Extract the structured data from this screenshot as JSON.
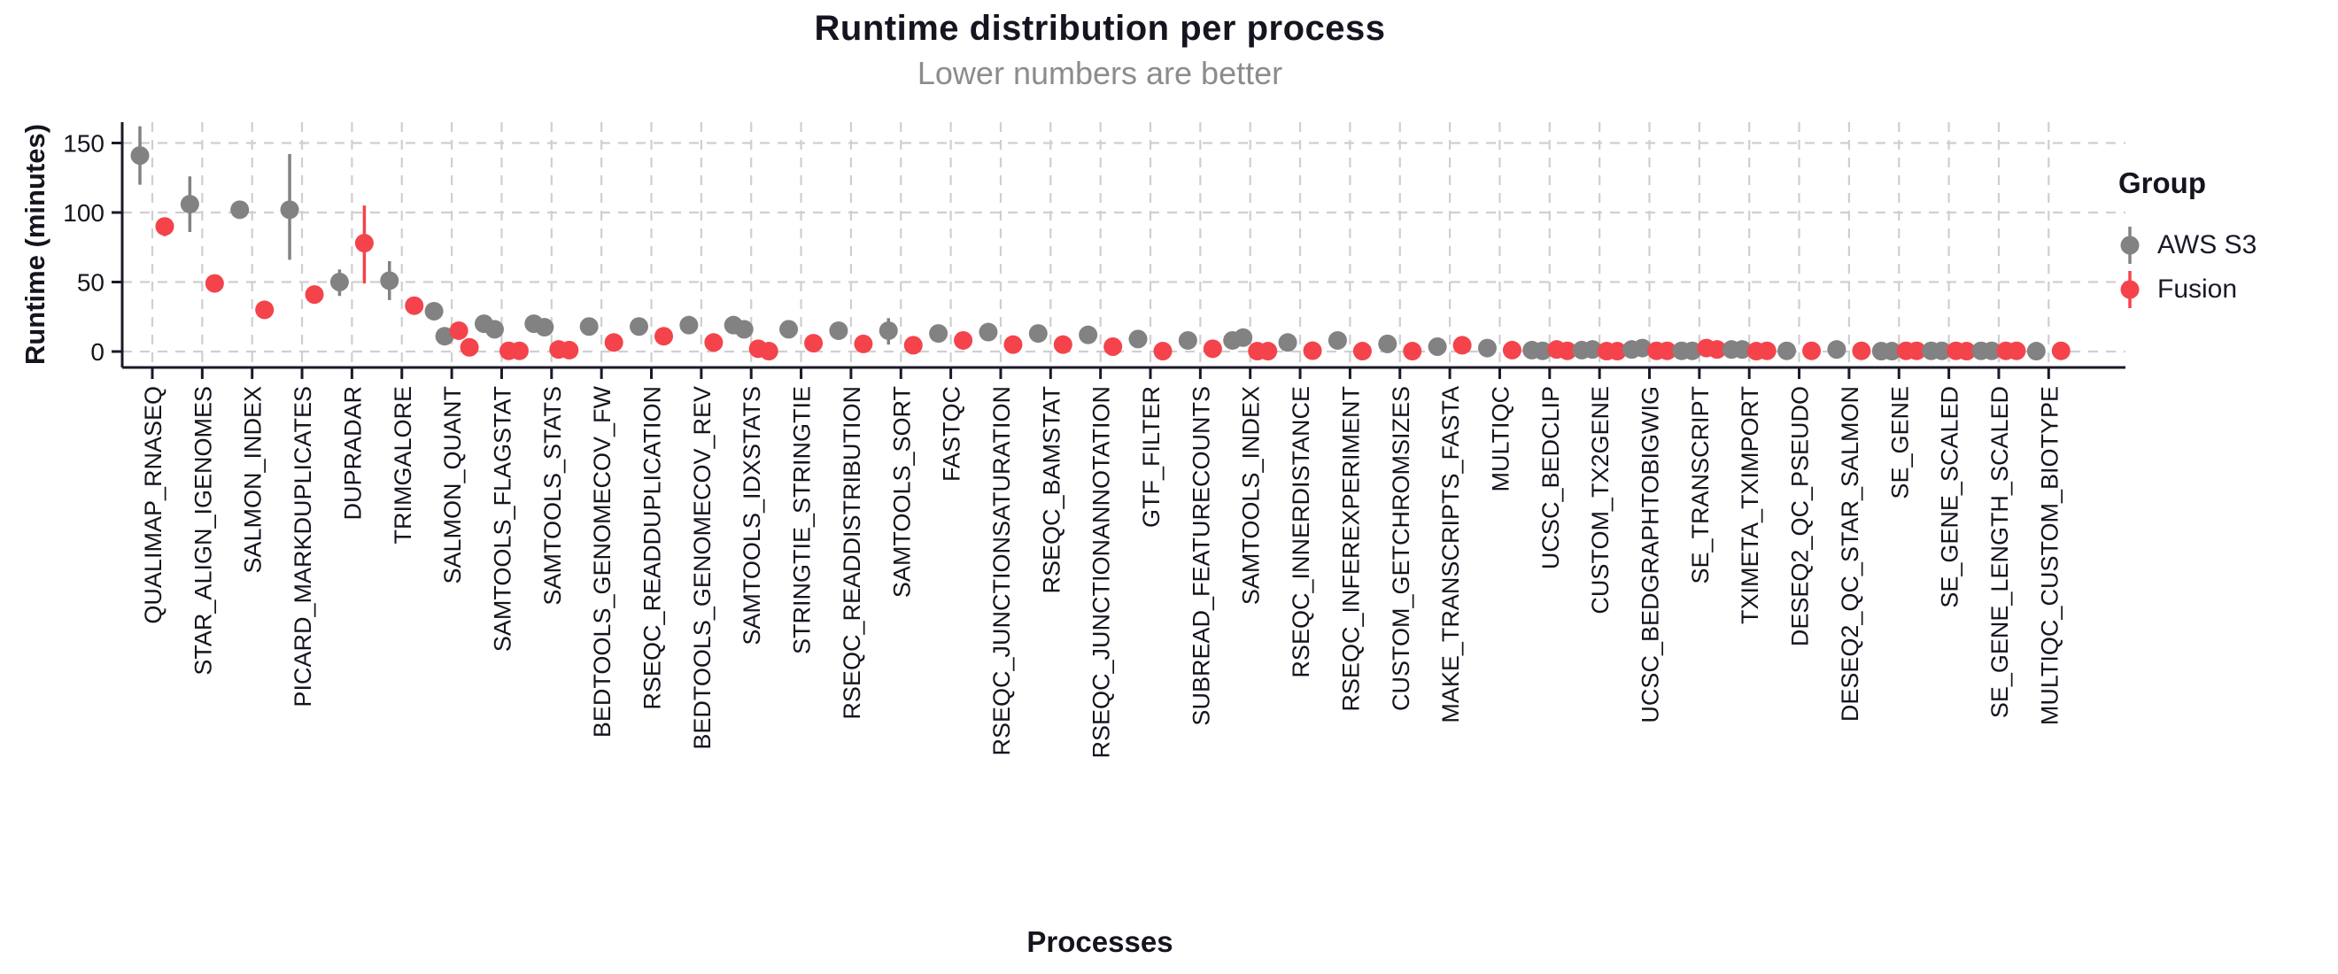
{
  "header": {
    "title": "Runtime distribution per process",
    "subtitle": "Lower numbers are better"
  },
  "axes": {
    "y_title": "Runtime (minutes)",
    "x_title": "Processes"
  },
  "legend": {
    "title": "Group",
    "items": [
      {
        "label": "AWS S3",
        "color": "#828282"
      },
      {
        "label": "Fusion",
        "color": "#F4434B"
      }
    ]
  },
  "colors": {
    "aws_s3": "#828282",
    "fusion": "#F4434B",
    "grid": "#CFCFCF",
    "axis": "#1B1928",
    "text_dark": "#16141F",
    "subtitle_gray": "#8C8C8C"
  },
  "chart_data": {
    "type": "scatter",
    "title": "Runtime distribution per process",
    "subtitle": "Lower numbers are better",
    "xlabel": "Processes",
    "ylabel": "Runtime (minutes)",
    "ylim": [
      0,
      175
    ],
    "yticks": [
      0,
      50,
      100,
      150
    ],
    "grid": true,
    "legend_position": "right",
    "legend_title": "Group",
    "series_names": [
      "AWS S3",
      "Fusion"
    ],
    "note": "Each category shows dodged points per group (values in minutes); *_range = error-bar [low, high] where visible.",
    "categories": [
      {
        "name": "QUALIMAP_RNASEQ",
        "aws_s3": [
          141
        ],
        "aws_s3_range": [
          120,
          162
        ],
        "fusion": [
          90
        ],
        "fusion_range": [
          83,
          96
        ]
      },
      {
        "name": "STAR_ALIGN_IGENOMES",
        "aws_s3": [
          106
        ],
        "aws_s3_range": [
          86,
          126
        ],
        "fusion": [
          49
        ],
        "fusion_range": null
      },
      {
        "name": "SALMON_INDEX",
        "aws_s3": [
          102
        ],
        "aws_s3_range": null,
        "fusion": [
          30
        ],
        "fusion_range": null
      },
      {
        "name": "PICARD_MARKDUPLICATES",
        "aws_s3": [
          102
        ],
        "aws_s3_range": [
          66,
          142
        ],
        "fusion": [
          41
        ],
        "fusion_range": null
      },
      {
        "name": "DUPRADAR",
        "aws_s3": [
          50
        ],
        "aws_s3_range": [
          40,
          59
        ],
        "fusion": [
          78
        ],
        "fusion_range": [
          49,
          105
        ]
      },
      {
        "name": "TRIMGALORE",
        "aws_s3": [
          51
        ],
        "aws_s3_range": [
          37,
          65
        ],
        "fusion": [
          33
        ],
        "fusion_range": null
      },
      {
        "name": "SALMON_QUANT",
        "aws_s3": [
          29,
          11
        ],
        "aws_s3_range": null,
        "fusion": [
          15,
          3
        ],
        "fusion_range": null
      },
      {
        "name": "SAMTOOLS_FLAGSTAT",
        "aws_s3": [
          20,
          16
        ],
        "aws_s3_range": null,
        "fusion": [
          0.5,
          0.5
        ],
        "fusion_range": null
      },
      {
        "name": "SAMTOOLS_STATS",
        "aws_s3": [
          20,
          17.5
        ],
        "aws_s3_range": null,
        "fusion": [
          1.5,
          1
        ],
        "fusion_range": null
      },
      {
        "name": "BEDTOOLS_GENOMECOV_FW",
        "aws_s3": [
          18
        ],
        "aws_s3_range": null,
        "fusion": [
          6.5
        ],
        "fusion_range": null
      },
      {
        "name": "RSEQC_READDUPLICATION",
        "aws_s3": [
          18
        ],
        "aws_s3_range": null,
        "fusion": [
          11
        ],
        "fusion_range": null
      },
      {
        "name": "BEDTOOLS_GENOMECOV_REV",
        "aws_s3": [
          19
        ],
        "aws_s3_range": null,
        "fusion": [
          6.5
        ],
        "fusion_range": null
      },
      {
        "name": "SAMTOOLS_IDXSTATS",
        "aws_s3": [
          19,
          16
        ],
        "aws_s3_range": null,
        "fusion": [
          2,
          0.3
        ],
        "fusion_range": null
      },
      {
        "name": "STRINGTIE_STRINGTIE",
        "aws_s3": [
          16
        ],
        "aws_s3_range": null,
        "fusion": [
          6
        ],
        "fusion_range": null
      },
      {
        "name": "RSEQC_READDISTRIBUTION",
        "aws_s3": [
          15
        ],
        "aws_s3_range": null,
        "fusion": [
          5.5
        ],
        "fusion_range": null
      },
      {
        "name": "SAMTOOLS_SORT",
        "aws_s3": [
          15
        ],
        "aws_s3_range": [
          5,
          24
        ],
        "fusion": [
          4.5
        ],
        "fusion_range": null
      },
      {
        "name": "FASTQC",
        "aws_s3": [
          13
        ],
        "aws_s3_range": null,
        "fusion": [
          8
        ],
        "fusion_range": null
      },
      {
        "name": "RSEQC_JUNCTIONSATURATION",
        "aws_s3": [
          14
        ],
        "aws_s3_range": null,
        "fusion": [
          5
        ],
        "fusion_range": null
      },
      {
        "name": "RSEQC_BAMSTAT",
        "aws_s3": [
          13
        ],
        "aws_s3_range": null,
        "fusion": [
          5
        ],
        "fusion_range": null
      },
      {
        "name": "RSEQC_JUNCTIONANNOTATION",
        "aws_s3": [
          12
        ],
        "aws_s3_range": null,
        "fusion": [
          3.5
        ],
        "fusion_range": null
      },
      {
        "name": "GTF_FILTER",
        "aws_s3": [
          9
        ],
        "aws_s3_range": null,
        "fusion": [
          0.3
        ],
        "fusion_range": null
      },
      {
        "name": "SUBREAD_FEATURECOUNTS",
        "aws_s3": [
          8
        ],
        "aws_s3_range": null,
        "fusion": [
          2
        ],
        "fusion_range": null
      },
      {
        "name": "SAMTOOLS_INDEX",
        "aws_s3": [
          8,
          10
        ],
        "aws_s3_range": null,
        "fusion": [
          0.3,
          0.3
        ],
        "fusion_range": null
      },
      {
        "name": "RSEQC_INNERDISTANCE",
        "aws_s3": [
          6.5
        ],
        "aws_s3_range": null,
        "fusion": [
          0.6
        ],
        "fusion_range": null
      },
      {
        "name": "RSEQC_INFEREXPERIMENT",
        "aws_s3": [
          8
        ],
        "aws_s3_range": null,
        "fusion": [
          0.3
        ],
        "fusion_range": null
      },
      {
        "name": "CUSTOM_GETCHROMSIZES",
        "aws_s3": [
          5.5
        ],
        "aws_s3_range": null,
        "fusion": [
          0.3
        ],
        "fusion_range": null
      },
      {
        "name": "MAKE_TRANSCRIPTS_FASTA",
        "aws_s3": [
          3.5
        ],
        "aws_s3_range": null,
        "fusion": [
          4.5
        ],
        "fusion_range": null
      },
      {
        "name": "MULTIQC",
        "aws_s3": [
          2.5
        ],
        "aws_s3_range": null,
        "fusion": [
          1
        ],
        "fusion_range": null
      },
      {
        "name": "UCSC_BEDCLIP",
        "aws_s3": [
          1,
          0.5
        ],
        "aws_s3_range": null,
        "fusion": [
          1.5,
          0.5
        ],
        "fusion_range": null
      },
      {
        "name": "CUSTOM_TX2GENE",
        "aws_s3": [
          1,
          1.5
        ],
        "aws_s3_range": null,
        "fusion": [
          0.3,
          0.3
        ],
        "fusion_range": null
      },
      {
        "name": "UCSC_BEDGRAPHTOBIGWIG",
        "aws_s3": [
          1.5,
          2.5
        ],
        "aws_s3_range": null,
        "fusion": [
          0.5,
          0.5
        ],
        "fusion_range": null
      },
      {
        "name": "SE_TRANSCRIPT",
        "aws_s3": [
          0.5,
          0.5
        ],
        "aws_s3_range": null,
        "fusion": [
          2.5,
          1.5
        ],
        "fusion_range": null
      },
      {
        "name": "TXIMETA_TXIMPORT",
        "aws_s3": [
          1.5,
          1.5
        ],
        "aws_s3_range": null,
        "fusion": [
          0.3,
          0.5
        ],
        "fusion_range": null
      },
      {
        "name": "DESEQ2_QC_PSEUDO",
        "aws_s3": [
          0.5
        ],
        "aws_s3_range": null,
        "fusion": [
          0.5
        ],
        "fusion_range": null
      },
      {
        "name": "DESEQ2_QC_STAR_SALMON",
        "aws_s3": [
          1.5
        ],
        "aws_s3_range": null,
        "fusion": [
          0.5
        ],
        "fusion_range": null
      },
      {
        "name": "SE_GENE",
        "aws_s3": [
          0.3,
          0.3
        ],
        "aws_s3_range": null,
        "fusion": [
          0.5,
          0.5
        ],
        "fusion_range": null
      },
      {
        "name": "SE_GENE_SCALED",
        "aws_s3": [
          0.5,
          0.5
        ],
        "aws_s3_range": null,
        "fusion": [
          0.5,
          0.3
        ],
        "fusion_range": null
      },
      {
        "name": "SE_GENE_LENGTH_SCALED",
        "aws_s3": [
          0.5,
          0.5
        ],
        "aws_s3_range": null,
        "fusion": [
          0.5,
          0.5
        ],
        "fusion_range": null
      },
      {
        "name": "MULTIQC_CUSTOM_BIOTYPE",
        "aws_s3": [
          0.3
        ],
        "aws_s3_range": null,
        "fusion": [
          0.5
        ],
        "fusion_range": null
      }
    ]
  }
}
